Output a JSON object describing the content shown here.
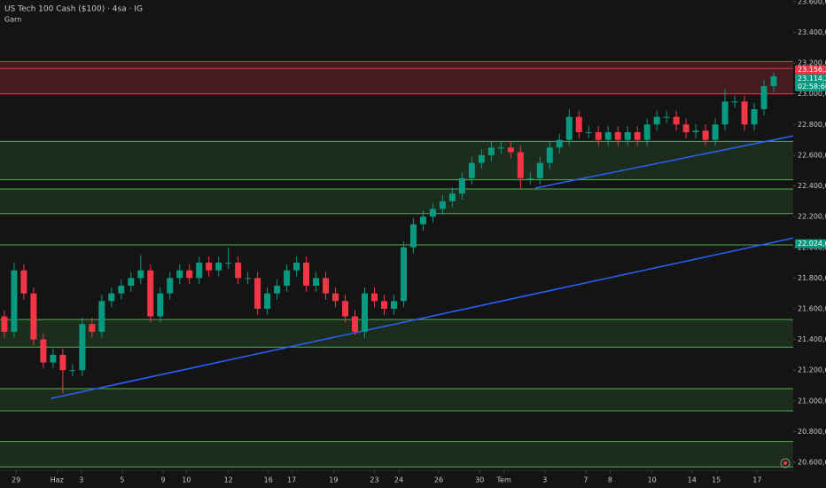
{
  "chart_data": {
    "type": "candlestick",
    "title": "US Tech 100 Cash ($100) · 4sa · IG",
    "subtitle": "Garn",
    "up_color": "#089981",
    "down_color": "#f23645",
    "opens": [
      21550,
      21450,
      21850,
      21700,
      21400,
      21250,
      21300,
      21200,
      21200,
      21500,
      21450,
      21650,
      21700,
      21750,
      21800,
      21850,
      21550,
      21700,
      21800,
      21850,
      21800,
      21900,
      21850,
      21900,
      21900,
      21800,
      21800,
      21600,
      21700,
      21750,
      21850,
      21900,
      21750,
      21800,
      21700,
      21650,
      21550,
      21450,
      21700,
      21650,
      21600,
      21650,
      22000,
      22150,
      22200,
      22250,
      22300,
      22350,
      22450,
      22550,
      22600,
      22650,
      22650,
      22620,
      22450,
      22450,
      22550,
      22650,
      22700,
      22850,
      22750,
      22750,
      22700,
      22750,
      22700,
      22750,
      22700,
      22800,
      22850,
      22850,
      22800,
      22750,
      22760,
      22700,
      22800,
      22950,
      22950,
      22800,
      22900,
      23050
    ],
    "highs": [
      21590,
      21900,
      21890,
      21740,
      21440,
      21340,
      21340,
      21240,
      21540,
      21540,
      21690,
      21740,
      21790,
      21840,
      21950,
      21890,
      21740,
      21840,
      21890,
      21890,
      21940,
      21940,
      21940,
      22000,
      21940,
      21840,
      21840,
      21740,
      21790,
      21890,
      21940,
      21940,
      21840,
      21840,
      21740,
      21690,
      21590,
      21740,
      21740,
      21690,
      21690,
      22040,
      22190,
      22240,
      22290,
      22340,
      22390,
      22490,
      22590,
      22640,
      22690,
      22690,
      22690,
      22660,
      22490,
      22590,
      22690,
      22740,
      22900,
      22890,
      22790,
      22790,
      22790,
      22790,
      22790,
      22790,
      22840,
      22890,
      22890,
      22890,
      22840,
      22800,
      22800,
      22840,
      23030,
      22990,
      22990,
      22940,
      23090,
      23140
    ],
    "lows": [
      21410,
      21410,
      21660,
      21360,
      21210,
      21210,
      21050,
      21160,
      21160,
      21410,
      21410,
      21610,
      21660,
      21710,
      21760,
      21510,
      21510,
      21660,
      21760,
      21760,
      21760,
      21810,
      21810,
      21860,
      21760,
      21760,
      21560,
      21560,
      21660,
      21710,
      21810,
      21710,
      21710,
      21660,
      21610,
      21510,
      21430,
      21410,
      21610,
      21560,
      21560,
      21610,
      21960,
      22110,
      22160,
      22210,
      22260,
      22310,
      22410,
      22510,
      22560,
      22610,
      22580,
      22380,
      22410,
      22410,
      22510,
      22610,
      22660,
      22710,
      22710,
      22660,
      22660,
      22660,
      22660,
      22660,
      22660,
      22760,
      22810,
      22760,
      22710,
      22710,
      22660,
      22660,
      22760,
      22910,
      22760,
      22760,
      22860,
      23010
    ],
    "closes": [
      21450,
      21850,
      21700,
      21400,
      21250,
      21300,
      21200,
      21200,
      21500,
      21450,
      21650,
      21700,
      21750,
      21800,
      21850,
      21550,
      21700,
      21800,
      21850,
      21800,
      21900,
      21850,
      21900,
      21900,
      21800,
      21800,
      21600,
      21700,
      21750,
      21850,
      21900,
      21750,
      21800,
      21700,
      21650,
      21550,
      21450,
      21700,
      21650,
      21600,
      21650,
      22000,
      22150,
      22200,
      22250,
      22300,
      22350,
      22450,
      22550,
      22600,
      22650,
      22650,
      22620,
      22450,
      22450,
      22550,
      22650,
      22700,
      22850,
      22750,
      22750,
      22700,
      22750,
      22700,
      22750,
      22700,
      22800,
      22850,
      22850,
      22800,
      22750,
      22760,
      22700,
      22800,
      22950,
      22950,
      22800,
      22900,
      23050,
      23114
    ],
    "xlim": [
      -0.45,
      81
    ],
    "xticks": [
      {
        "value": 1.2,
        "label": "29"
      },
      {
        "value": 5.4,
        "label": "Haz"
      },
      {
        "value": 7.9,
        "label": "3"
      },
      {
        "value": 12.1,
        "label": "5"
      },
      {
        "value": 16.3,
        "label": "9"
      },
      {
        "value": 18.7,
        "label": "10"
      },
      {
        "value": 23,
        "label": "12"
      },
      {
        "value": 27.1,
        "label": "16"
      },
      {
        "value": 29.5,
        "label": "17"
      },
      {
        "value": 33.8,
        "label": "19"
      },
      {
        "value": 38,
        "label": "23"
      },
      {
        "value": 40.5,
        "label": "24"
      },
      {
        "value": 44.6,
        "label": "26"
      },
      {
        "value": 48.8,
        "label": "30"
      },
      {
        "value": 51.3,
        "label": "Tem"
      },
      {
        "value": 55.5,
        "label": "3"
      },
      {
        "value": 59.7,
        "label": "7"
      },
      {
        "value": 62.2,
        "label": "8"
      },
      {
        "value": 66.5,
        "label": "10"
      },
      {
        "value": 70.6,
        "label": "14"
      },
      {
        "value": 73.1,
        "label": "15"
      },
      {
        "value": 77.3,
        "label": "17"
      }
    ],
    "ylim": [
      20548,
      23611
    ],
    "yticks": [
      {
        "value": 23600,
        "label": "23.600,0"
      },
      {
        "value": 23400,
        "label": "23.400,0"
      },
      {
        "value": 23200,
        "label": "23.200,0"
      },
      {
        "value": 23000,
        "label": "23.000,0"
      },
      {
        "value": 22800,
        "label": "22.800,0"
      },
      {
        "value": 22600,
        "label": "22.600,0"
      },
      {
        "value": 22400,
        "label": "22.400,0"
      },
      {
        "value": 22200,
        "label": "22.200,0"
      },
      {
        "value": 22000,
        "label": "22.000,0"
      },
      {
        "value": 21800,
        "label": "21.800,0"
      },
      {
        "value": 21600,
        "label": "21.600,0"
      },
      {
        "value": 21400,
        "label": "21.400,0"
      },
      {
        "value": 21200,
        "label": "21.200,0"
      },
      {
        "value": 21000,
        "label": "21.000,0"
      },
      {
        "value": 20800,
        "label": "20.800,0"
      },
      {
        "value": 20600,
        "label": "20.600,0"
      }
    ],
    "resistance_zone": {
      "color": "#f23645",
      "range": [
        23000,
        23210
      ],
      "level": 23165
    },
    "support_zones": {
      "color": "#4caf50",
      "ranges": [
        [
          22440,
          22690
        ],
        [
          22220,
          22380
        ],
        [
          21350,
          21530
        ],
        [
          20935,
          21080
        ],
        [
          20570,
          20735
        ]
      ],
      "level": 22016
    },
    "trendlines": {
      "color": "#2962ff",
      "lines": [
        {
          "x": [
            4.8,
            81.1
          ],
          "y": [
            21016,
            22062
          ]
        },
        {
          "x": [
            54.5,
            81.1
          ],
          "y": [
            22386,
            22727
          ]
        }
      ]
    },
    "price_tags": [
      {
        "value": 23156.2,
        "label": "23.156,2",
        "color": "#f23645"
      },
      {
        "value": 23114.2,
        "label": "23.114,2",
        "sub": "02:58:60",
        "color": "#089981"
      },
      {
        "value": 22024.0,
        "label": "22.024,0",
        "color": "#089981"
      }
    ]
  }
}
